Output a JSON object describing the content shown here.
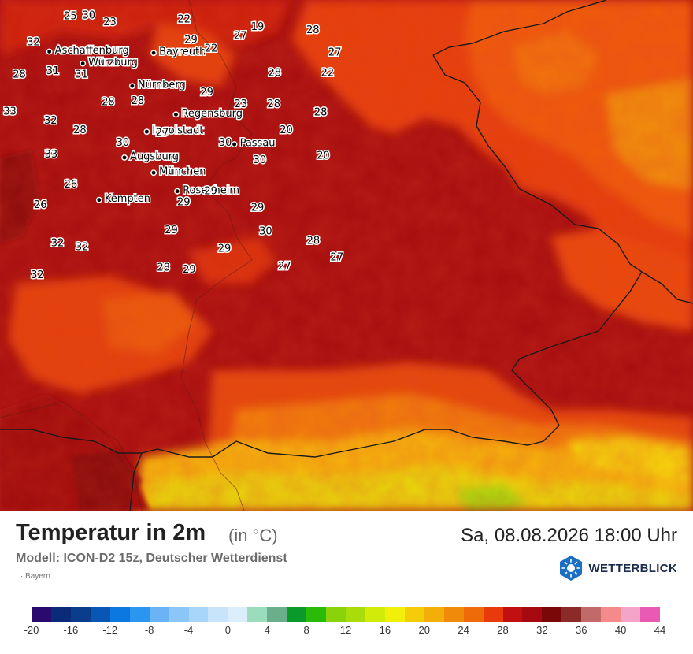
{
  "title": "Temperatur in 2m",
  "unit": "(in °C)",
  "model": "Modell: ICON-D2 15z, Deutscher Wetterdienst",
  "region": "Bayern",
  "datetime": "Sa, 08.08.2026 18:00 Uhr",
  "brand": "WETTERBLICK",
  "brand_icon": "sun-hexagon-icon",
  "cities": [
    {
      "name": "Aschaffenburg",
      "lon": 9.15,
      "lat": 49.97
    },
    {
      "name": "Würzburg",
      "lon": 9.93,
      "lat": 49.79
    },
    {
      "name": "Bayreuth",
      "lon": 11.58,
      "lat": 49.95
    },
    {
      "name": "Nürnberg",
      "lon": 11.08,
      "lat": 49.45
    },
    {
      "name": "Regensburg",
      "lon": 12.1,
      "lat": 49.02
    },
    {
      "name": "Ingolstadt",
      "lon": 11.42,
      "lat": 48.76
    },
    {
      "name": "Passau",
      "lon": 13.46,
      "lat": 48.57
    },
    {
      "name": "Augsburg",
      "lon": 10.9,
      "lat": 48.37
    },
    {
      "name": "München",
      "lon": 11.58,
      "lat": 48.14
    },
    {
      "name": "Rosenheim",
      "lon": 12.13,
      "lat": 47.86
    },
    {
      "name": "Kempten",
      "lon": 10.31,
      "lat": 47.73
    }
  ],
  "temperatures": [
    {
      "v": "25",
      "lon": 9.64,
      "lat": 50.5
    },
    {
      "v": "30",
      "lon": 10.07,
      "lat": 50.51
    },
    {
      "v": "23",
      "lon": 10.56,
      "lat": 50.41
    },
    {
      "v": "22",
      "lon": 12.29,
      "lat": 50.45
    },
    {
      "v": "19",
      "lon": 14.0,
      "lat": 50.34
    },
    {
      "v": "28",
      "lon": 15.29,
      "lat": 50.29
    },
    {
      "v": "27",
      "lon": 13.6,
      "lat": 50.2
    },
    {
      "v": "32",
      "lon": 8.78,
      "lat": 50.11
    },
    {
      "v": "29",
      "lon": 12.45,
      "lat": 50.14
    },
    {
      "v": "22",
      "lon": 12.92,
      "lat": 50.01
    },
    {
      "v": "27",
      "lon": 15.8,
      "lat": 49.95
    },
    {
      "v": "28",
      "lon": 8.45,
      "lat": 49.62
    },
    {
      "v": "31",
      "lon": 9.23,
      "lat": 49.67
    },
    {
      "v": "31",
      "lon": 9.9,
      "lat": 49.62
    },
    {
      "v": "28",
      "lon": 14.4,
      "lat": 49.64
    },
    {
      "v": "22",
      "lon": 15.63,
      "lat": 49.64
    },
    {
      "v": "29",
      "lon": 12.82,
      "lat": 49.35
    },
    {
      "v": "28",
      "lon": 10.52,
      "lat": 49.2
    },
    {
      "v": "28",
      "lon": 11.21,
      "lat": 49.22
    },
    {
      "v": "23",
      "lon": 13.61,
      "lat": 49.17
    },
    {
      "v": "28",
      "lon": 14.38,
      "lat": 49.17
    },
    {
      "v": "33",
      "lon": 8.23,
      "lat": 49.06
    },
    {
      "v": "28",
      "lon": 15.47,
      "lat": 49.05
    },
    {
      "v": "32",
      "lon": 9.18,
      "lat": 48.92
    },
    {
      "v": "28",
      "lon": 9.86,
      "lat": 48.78
    },
    {
      "v": "20",
      "lon": 14.67,
      "lat": 48.78
    },
    {
      "v": "27",
      "lon": 11.78,
      "lat": 48.74
    },
    {
      "v": "30",
      "lon": 10.86,
      "lat": 48.59
    },
    {
      "v": "30",
      "lon": 13.25,
      "lat": 48.59
    },
    {
      "v": "33",
      "lon": 9.19,
      "lat": 48.41
    },
    {
      "v": "20",
      "lon": 15.53,
      "lat": 48.39
    },
    {
      "v": "30",
      "lon": 14.05,
      "lat": 48.33
    },
    {
      "v": "26",
      "lon": 9.65,
      "lat": 47.96
    },
    {
      "v": "29",
      "lon": 12.91,
      "lat": 47.86
    },
    {
      "v": "26",
      "lon": 8.94,
      "lat": 47.65
    },
    {
      "v": "29",
      "lon": 12.28,
      "lat": 47.69
    },
    {
      "v": "29",
      "lon": 14.0,
      "lat": 47.61
    },
    {
      "v": "29",
      "lon": 11.99,
      "lat": 47.27
    },
    {
      "v": "30",
      "lon": 14.19,
      "lat": 47.25
    },
    {
      "v": "28",
      "lon": 15.3,
      "lat": 47.11
    },
    {
      "v": "32",
      "lon": 9.34,
      "lat": 47.07
    },
    {
      "v": "32",
      "lon": 9.91,
      "lat": 47.01
    },
    {
      "v": "29",
      "lon": 13.23,
      "lat": 46.99
    },
    {
      "v": "27",
      "lon": 15.85,
      "lat": 46.86
    },
    {
      "v": "28",
      "lon": 11.81,
      "lat": 46.7
    },
    {
      "v": "29",
      "lon": 12.41,
      "lat": 46.67
    },
    {
      "v": "27",
      "lon": 14.63,
      "lat": 46.72
    },
    {
      "v": "32",
      "lon": 8.87,
      "lat": 46.59
    }
  ],
  "legend": {
    "colors": [
      "#2a0a6e",
      "#0a2a7a",
      "#0a3d8c",
      "#0a56b4",
      "#0a78e0",
      "#2a96f0",
      "#6ab4f5",
      "#8cc6f8",
      "#a8d6fa",
      "#c8e4fb",
      "#dceefc",
      "#9adcbc",
      "#6aae8c",
      "#0a9a2a",
      "#2aba0a",
      "#8ad20a",
      "#a8dc0a",
      "#d2ec0a",
      "#f0f00a",
      "#f4cc0a",
      "#f4ae0a",
      "#f08a0a",
      "#f06a0a",
      "#e83a0a",
      "#c21010",
      "#a60a10",
      "#7a0808",
      "#8c2a2a",
      "#c26a6a",
      "#f48a8a",
      "#f4a4c6",
      "#ea5ab4"
    ],
    "ticks": [
      "-20",
      "-16",
      "-12",
      "-8",
      "-4",
      "0",
      "4",
      "8",
      "12",
      "16",
      "20",
      "24",
      "28",
      "32",
      "36",
      "40",
      "44"
    ]
  }
}
